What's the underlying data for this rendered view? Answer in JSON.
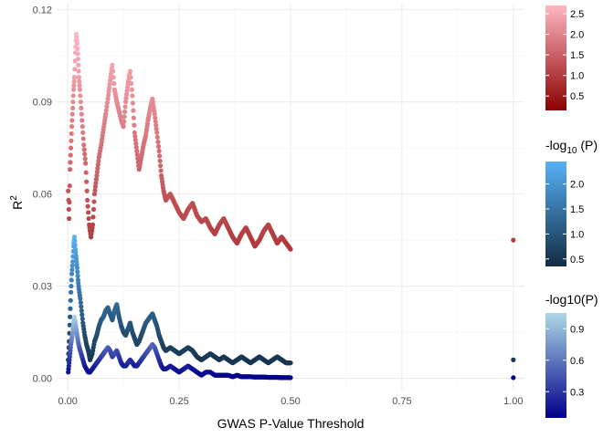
{
  "chart_data": {
    "type": "scatter",
    "xlabel": "GWAS P-Value Threshold",
    "ylabel": "R",
    "ylabel_sup": "2",
    "xlim": [
      -0.025,
      1.025
    ],
    "ylim": [
      -0.004,
      0.122
    ],
    "x_ticks": [
      0,
      0.25,
      0.5,
      0.75,
      1
    ],
    "x_tick_labels": [
      "0.00",
      "0.25",
      "0.50",
      "0.75",
      "1.00"
    ],
    "y_ticks": [
      0,
      0.03,
      0.06,
      0.09,
      0.12
    ],
    "y_tick_labels": [
      "0.00",
      "0.03",
      "0.06",
      "0.09",
      "0.12"
    ],
    "grid": true,
    "legend_position": "right",
    "series": [
      {
        "key": "red",
        "color_low": "#8b0000",
        "color_high": "#ffb6c1",
        "points": [
          [
            0.001,
            0.061
          ],
          [
            0.003,
            0.052
          ],
          [
            0.005,
            0.068
          ],
          [
            0.007,
            0.075
          ],
          [
            0.009,
            0.082
          ],
          [
            0.011,
            0.088
          ],
          [
            0.013,
            0.094
          ],
          [
            0.015,
            0.098
          ],
          [
            0.017,
            0.106
          ],
          [
            0.019,
            0.112
          ],
          [
            0.021,
            0.109
          ],
          [
            0.023,
            0.104
          ],
          [
            0.025,
            0.098
          ],
          [
            0.027,
            0.094
          ],
          [
            0.03,
            0.088
          ],
          [
            0.033,
            0.082
          ],
          [
            0.036,
            0.076
          ],
          [
            0.04,
            0.07
          ],
          [
            0.044,
            0.058
          ],
          [
            0.048,
            0.05
          ],
          [
            0.052,
            0.046
          ],
          [
            0.056,
            0.05
          ],
          [
            0.06,
            0.06
          ],
          [
            0.065,
            0.066
          ],
          [
            0.07,
            0.072
          ],
          [
            0.075,
            0.076
          ],
          [
            0.08,
            0.081
          ],
          [
            0.085,
            0.086
          ],
          [
            0.09,
            0.091
          ],
          [
            0.095,
            0.097
          ],
          [
            0.1,
            0.102
          ],
          [
            0.105,
            0.094
          ],
          [
            0.11,
            0.09
          ],
          [
            0.115,
            0.087
          ],
          [
            0.12,
            0.084
          ],
          [
            0.125,
            0.082
          ],
          [
            0.13,
            0.09
          ],
          [
            0.135,
            0.096
          ],
          [
            0.14,
            0.1
          ],
          [
            0.145,
            0.092
          ],
          [
            0.15,
            0.08
          ],
          [
            0.155,
            0.074
          ],
          [
            0.16,
            0.068
          ],
          [
            0.165,
            0.072
          ],
          [
            0.17,
            0.076
          ],
          [
            0.175,
            0.079
          ],
          [
            0.18,
            0.084
          ],
          [
            0.185,
            0.088
          ],
          [
            0.19,
            0.091
          ],
          [
            0.195,
            0.086
          ],
          [
            0.2,
            0.08
          ],
          [
            0.205,
            0.074
          ],
          [
            0.21,
            0.066
          ],
          [
            0.215,
            0.061
          ],
          [
            0.22,
            0.058
          ],
          [
            0.23,
            0.06
          ],
          [
            0.24,
            0.057
          ],
          [
            0.25,
            0.054
          ],
          [
            0.26,
            0.052
          ],
          [
            0.27,
            0.055
          ],
          [
            0.28,
            0.057
          ],
          [
            0.29,
            0.053
          ],
          [
            0.3,
            0.051
          ],
          [
            0.31,
            0.052
          ],
          [
            0.32,
            0.049
          ],
          [
            0.33,
            0.047
          ],
          [
            0.34,
            0.05
          ],
          [
            0.35,
            0.052
          ],
          [
            0.36,
            0.049
          ],
          [
            0.37,
            0.046
          ],
          [
            0.38,
            0.044
          ],
          [
            0.39,
            0.047
          ],
          [
            0.4,
            0.049
          ],
          [
            0.41,
            0.046
          ],
          [
            0.42,
            0.043
          ],
          [
            0.43,
            0.045
          ],
          [
            0.44,
            0.048
          ],
          [
            0.45,
            0.05
          ],
          [
            0.46,
            0.047
          ],
          [
            0.47,
            0.044
          ],
          [
            0.48,
            0.046
          ],
          [
            0.49,
            0.044
          ],
          [
            0.5,
            0.042
          ],
          [
            1.0,
            0.045
          ]
        ]
      },
      {
        "key": "blue",
        "color_low": "#132b43",
        "color_high": "#56b1f7",
        "points": [
          [
            0.001,
            0.006
          ],
          [
            0.003,
            0.012
          ],
          [
            0.005,
            0.02
          ],
          [
            0.007,
            0.028
          ],
          [
            0.009,
            0.034
          ],
          [
            0.011,
            0.038
          ],
          [
            0.013,
            0.043
          ],
          [
            0.015,
            0.046
          ],
          [
            0.017,
            0.042
          ],
          [
            0.019,
            0.039
          ],
          [
            0.021,
            0.036
          ],
          [
            0.023,
            0.032
          ],
          [
            0.025,
            0.029
          ],
          [
            0.028,
            0.026
          ],
          [
            0.031,
            0.022
          ],
          [
            0.034,
            0.018
          ],
          [
            0.038,
            0.014
          ],
          [
            0.042,
            0.011
          ],
          [
            0.046,
            0.009
          ],
          [
            0.05,
            0.006
          ],
          [
            0.055,
            0.008
          ],
          [
            0.06,
            0.012
          ],
          [
            0.065,
            0.014
          ],
          [
            0.07,
            0.017
          ],
          [
            0.075,
            0.019
          ],
          [
            0.08,
            0.02
          ],
          [
            0.085,
            0.022
          ],
          [
            0.09,
            0.023
          ],
          [
            0.095,
            0.021
          ],
          [
            0.1,
            0.019
          ],
          [
            0.105,
            0.022
          ],
          [
            0.11,
            0.024
          ],
          [
            0.115,
            0.02
          ],
          [
            0.12,
            0.017
          ],
          [
            0.125,
            0.015
          ],
          [
            0.13,
            0.014
          ],
          [
            0.135,
            0.016
          ],
          [
            0.14,
            0.018
          ],
          [
            0.145,
            0.015
          ],
          [
            0.15,
            0.013
          ],
          [
            0.155,
            0.011
          ],
          [
            0.16,
            0.012
          ],
          [
            0.165,
            0.014
          ],
          [
            0.17,
            0.016
          ],
          [
            0.175,
            0.018
          ],
          [
            0.18,
            0.019
          ],
          [
            0.185,
            0.02
          ],
          [
            0.19,
            0.021
          ],
          [
            0.195,
            0.019
          ],
          [
            0.2,
            0.017
          ],
          [
            0.205,
            0.014
          ],
          [
            0.21,
            0.012
          ],
          [
            0.215,
            0.01
          ],
          [
            0.22,
            0.009
          ],
          [
            0.23,
            0.01
          ],
          [
            0.24,
            0.009
          ],
          [
            0.25,
            0.008
          ],
          [
            0.26,
            0.009
          ],
          [
            0.27,
            0.01
          ],
          [
            0.28,
            0.009
          ],
          [
            0.29,
            0.007
          ],
          [
            0.3,
            0.006
          ],
          [
            0.31,
            0.007
          ],
          [
            0.32,
            0.008
          ],
          [
            0.33,
            0.007
          ],
          [
            0.34,
            0.006
          ],
          [
            0.35,
            0.007
          ],
          [
            0.36,
            0.006
          ],
          [
            0.37,
            0.005
          ],
          [
            0.38,
            0.006
          ],
          [
            0.39,
            0.007
          ],
          [
            0.4,
            0.006
          ],
          [
            0.41,
            0.005
          ],
          [
            0.42,
            0.006
          ],
          [
            0.43,
            0.007
          ],
          [
            0.44,
            0.006
          ],
          [
            0.45,
            0.005
          ],
          [
            0.46,
            0.006
          ],
          [
            0.47,
            0.007
          ],
          [
            0.48,
            0.006
          ],
          [
            0.49,
            0.005
          ],
          [
            0.5,
            0.005
          ],
          [
            1.0,
            0.006
          ]
        ]
      },
      {
        "key": "purple",
        "color_low": "#00008b",
        "color_high": "#add8e6",
        "points": [
          [
            0.001,
            0.002
          ],
          [
            0.003,
            0.005
          ],
          [
            0.005,
            0.008
          ],
          [
            0.007,
            0.011
          ],
          [
            0.009,
            0.013
          ],
          [
            0.011,
            0.015
          ],
          [
            0.013,
            0.018
          ],
          [
            0.015,
            0.02
          ],
          [
            0.017,
            0.018
          ],
          [
            0.019,
            0.016
          ],
          [
            0.021,
            0.014
          ],
          [
            0.023,
            0.012
          ],
          [
            0.026,
            0.01
          ],
          [
            0.03,
            0.008
          ],
          [
            0.034,
            0.006
          ],
          [
            0.038,
            0.004
          ],
          [
            0.042,
            0.003
          ],
          [
            0.046,
            0.002
          ],
          [
            0.05,
            0.002
          ],
          [
            0.055,
            0.003
          ],
          [
            0.06,
            0.004
          ],
          [
            0.065,
            0.005
          ],
          [
            0.07,
            0.006
          ],
          [
            0.075,
            0.007
          ],
          [
            0.08,
            0.008
          ],
          [
            0.085,
            0.009
          ],
          [
            0.09,
            0.01
          ],
          [
            0.095,
            0.009
          ],
          [
            0.1,
            0.007
          ],
          [
            0.105,
            0.008
          ],
          [
            0.11,
            0.009
          ],
          [
            0.115,
            0.007
          ],
          [
            0.12,
            0.005
          ],
          [
            0.125,
            0.004
          ],
          [
            0.13,
            0.004
          ],
          [
            0.135,
            0.005
          ],
          [
            0.14,
            0.006
          ],
          [
            0.145,
            0.005
          ],
          [
            0.15,
            0.004
          ],
          [
            0.155,
            0.004
          ],
          [
            0.16,
            0.005
          ],
          [
            0.165,
            0.006
          ],
          [
            0.17,
            0.007
          ],
          [
            0.175,
            0.008
          ],
          [
            0.18,
            0.009
          ],
          [
            0.185,
            0.01
          ],
          [
            0.19,
            0.011
          ],
          [
            0.195,
            0.01
          ],
          [
            0.2,
            0.008
          ],
          [
            0.205,
            0.006
          ],
          [
            0.21,
            0.004
          ],
          [
            0.215,
            0.003
          ],
          [
            0.22,
            0.003
          ],
          [
            0.23,
            0.004
          ],
          [
            0.24,
            0.003
          ],
          [
            0.25,
            0.002
          ],
          [
            0.26,
            0.003
          ],
          [
            0.27,
            0.004
          ],
          [
            0.28,
            0.003
          ],
          [
            0.29,
            0.002
          ],
          [
            0.3,
            0.001
          ],
          [
            0.31,
            0.002
          ],
          [
            0.32,
            0.002
          ],
          [
            0.33,
            0.001
          ],
          [
            0.34,
            0.001
          ],
          [
            0.35,
            0.001
          ],
          [
            0.36,
            0.001
          ],
          [
            0.37,
            0.0005
          ],
          [
            0.38,
            0.001
          ],
          [
            0.39,
            0.0005
          ],
          [
            0.4,
            0.0005
          ],
          [
            0.41,
            0.0005
          ],
          [
            0.42,
            0.0004
          ],
          [
            0.43,
            0.0004
          ],
          [
            0.44,
            0.0004
          ],
          [
            0.45,
            0.0003
          ],
          [
            0.46,
            0.0003
          ],
          [
            0.47,
            0.0003
          ],
          [
            0.48,
            0.0002
          ],
          [
            0.49,
            0.0002
          ],
          [
            0.5,
            0.0002
          ],
          [
            1.0,
            0.0002
          ]
        ]
      }
    ],
    "legends": [
      {
        "title": "",
        "color_low": "#8b0000",
        "color_high": "#ffb6c1",
        "range": [
          0.15,
          2.7
        ],
        "ticks": [
          0.5,
          1.0,
          1.5,
          2.0,
          2.5
        ],
        "tick_labels": [
          "0.5",
          "1.0",
          "1.5",
          "2.0",
          "2.5"
        ]
      },
      {
        "title": "-log",
        "title_sub": "10",
        "title_tail": " (P)",
        "color_low": "#132b43",
        "color_high": "#56b1f7",
        "range": [
          0.35,
          2.45
        ],
        "ticks": [
          0.5,
          1.0,
          1.5,
          2.0
        ],
        "tick_labels": [
          "0.5",
          "1.0",
          "1.5",
          "2.0"
        ]
      },
      {
        "title": "-log10(P)",
        "color_low": "#00008b",
        "color_high": "#add8e6",
        "range": [
          0.05,
          1.05
        ],
        "ticks": [
          0.3,
          0.6,
          0.9
        ],
        "tick_labels": [
          "0.3",
          "0.6",
          "0.9"
        ]
      }
    ]
  }
}
